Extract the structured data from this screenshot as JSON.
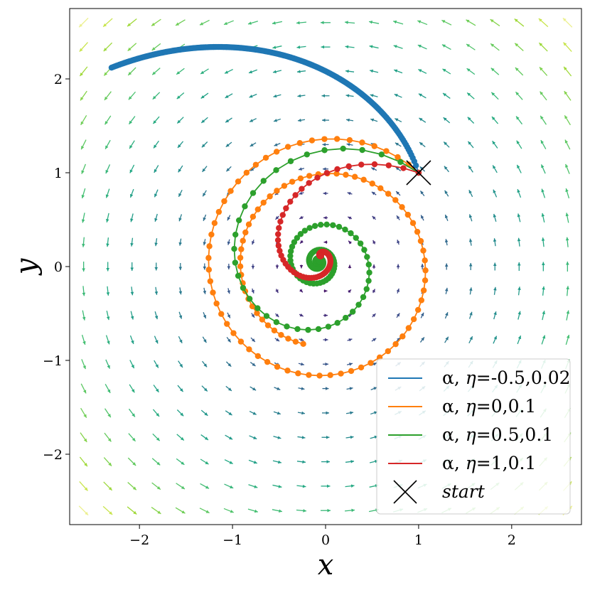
{
  "chart_data": {
    "type": "line",
    "xlabel": "x",
    "ylabel": "y",
    "xlim": [
      -2.75,
      2.75
    ],
    "ylim": [
      -2.75,
      2.75
    ],
    "xticks": [
      -2,
      -1,
      0,
      1,
      2
    ],
    "yticks": [
      -2,
      -1,
      0,
      1,
      2
    ],
    "xtick_labels": [
      "−2",
      "−1",
      "0",
      "1",
      "2"
    ],
    "ytick_labels": [
      "−2",
      "−1",
      "0",
      "1",
      "2"
    ],
    "grid": false,
    "legend_position": "lower-right",
    "background": "quiver vector field (rotational), colored by magnitude, viridis colormap",
    "start": {
      "x": 1,
      "y": 1,
      "label": "start",
      "marker": "x",
      "color": "#000000"
    },
    "series": [
      {
        "name": "α, η=-0.5,0.02",
        "alpha": -0.5,
        "eta": 0.02,
        "steps": 200,
        "color": "#1f77b4",
        "end": {
          "x": -2.3,
          "y": 2.12
        }
      },
      {
        "name": "α, η=0,0.1",
        "alpha": 0,
        "eta": 0.1,
        "steps": 100,
        "color": "#ff7f0e",
        "end": {
          "x": -0.12,
          "y": -0.85
        }
      },
      {
        "name": "α, η=0.5,0.1",
        "alpha": 0.5,
        "eta": 0.1,
        "steps": 160,
        "color": "#2ca02c",
        "end": {
          "x": 0.0,
          "y": 0.0
        }
      },
      {
        "name": "α, η=1,0.1",
        "alpha": 1,
        "eta": 0.1,
        "steps": 100,
        "color": "#d62728",
        "end": {
          "x": -0.1,
          "y": 0.2
        }
      }
    ]
  },
  "legend": {
    "entries": [
      {
        "prefix": "α, ",
        "italic": "η",
        "suffix": "=-0.5,0.02"
      },
      {
        "prefix": "α, ",
        "italic": "η",
        "suffix": "=0,0.1"
      },
      {
        "prefix": "α, ",
        "italic": "η",
        "suffix": "=0.5,0.1"
      },
      {
        "prefix": "α, ",
        "italic": "η",
        "suffix": "=1,0.1"
      },
      {
        "prefix": "",
        "italic": "start",
        "suffix": ""
      }
    ]
  }
}
